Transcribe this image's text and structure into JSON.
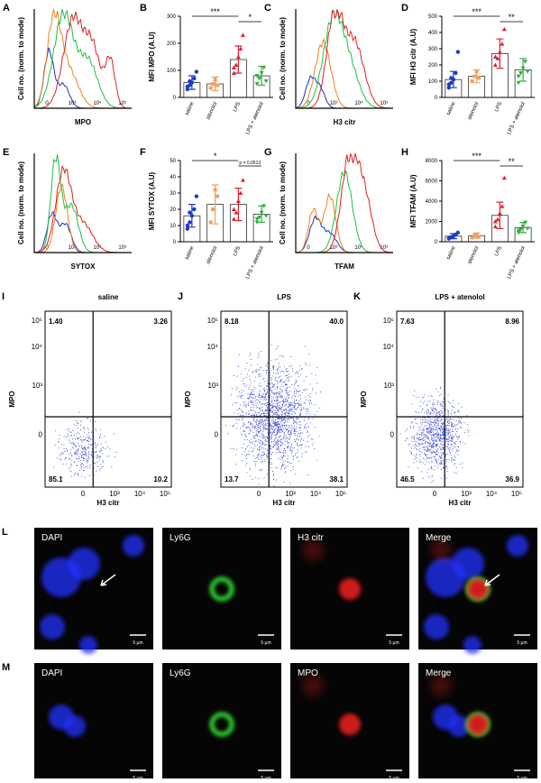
{
  "histograms": [
    {
      "label": "A",
      "xlabel": "MPO",
      "ylabel": "Cell no. (norm. to mode)",
      "xticks": [
        "0",
        "10³",
        "10⁴",
        "10⁵"
      ]
    },
    {
      "label": "C",
      "xlabel": "H3 citr",
      "ylabel": "Cell no. (norm. to mode)",
      "xticks": [
        "0",
        "10³",
        "10⁴",
        "10⁵"
      ]
    },
    {
      "label": "E",
      "xlabel": "SYTOX",
      "ylabel": "Cell no. (norm. to mode)",
      "xticks": [
        "0",
        "10³",
        "10⁴",
        "10⁵"
      ]
    },
    {
      "label": "G",
      "xlabel": "TFAM",
      "ylabel": "Cell no. (norm. to mode)",
      "xticks": [
        "0",
        "10³",
        "10⁴",
        "10⁵"
      ]
    }
  ],
  "bar_charts": [
    {
      "label": "B",
      "ylabel": "MFI MPO (A.U)",
      "categories": [
        "saline",
        "atenolol",
        "LPS",
        "LPS + atenolol"
      ],
      "colors": [
        "#1c3cc4",
        "#f0a060",
        "#e02030",
        "#30b040"
      ],
      "ylim": [
        0,
        300
      ],
      "yticks": [
        0,
        100,
        200,
        300
      ],
      "values": [
        55,
        50,
        140,
        80
      ],
      "errors": [
        25,
        25,
        50,
        35
      ],
      "points": [
        [
          30,
          45,
          55,
          70,
          95,
          40,
          60
        ],
        [
          35,
          50,
          65,
          45
        ],
        [
          90,
          120,
          150,
          180,
          230,
          110
        ],
        [
          50,
          70,
          90,
          110,
          60,
          80
        ]
      ],
      "annotations": [
        {
          "text": "***",
          "between": [
            "saline",
            "LPS"
          ]
        },
        {
          "text": "*",
          "between": [
            "LPS",
            "LPS + atenolol"
          ]
        }
      ]
    },
    {
      "label": "D",
      "ylabel": "MFI H3 citr (A.U)",
      "categories": [
        "saline",
        "atenolol",
        "LPS",
        "LPS + atenolol"
      ],
      "colors": [
        "#1c3cc4",
        "#f0a060",
        "#e02030",
        "#30b040"
      ],
      "ylim": [
        0,
        500
      ],
      "yticks": [
        0,
        100,
        200,
        300,
        400,
        500
      ],
      "values": [
        110,
        130,
        270,
        170
      ],
      "errors": [
        50,
        40,
        90,
        70
      ],
      "points": [
        [
          60,
          90,
          110,
          150,
          280,
          80,
          120
        ],
        [
          100,
          130,
          160,
          120
        ],
        [
          200,
          240,
          280,
          330,
          420,
          250
        ],
        [
          90,
          150,
          180,
          220,
          160,
          130
        ]
      ],
      "annotations": [
        {
          "text": "***",
          "between": [
            "saline",
            "LPS"
          ]
        },
        {
          "text": "**",
          "between": [
            "LPS",
            "LPS + atenolol"
          ]
        }
      ]
    },
    {
      "label": "F",
      "ylabel": "MFI SYTOX (A.U)",
      "categories": [
        "saline",
        "atenolol",
        "LPS",
        "LPS + atenolol"
      ],
      "colors": [
        "#1c3cc4",
        "#f0a060",
        "#e02030",
        "#30b040"
      ],
      "ylim": [
        0,
        50
      ],
      "yticks": [
        0,
        10,
        20,
        30,
        40,
        50
      ],
      "values": [
        16,
        23,
        23,
        17
      ],
      "errors": [
        7,
        12,
        10,
        5
      ],
      "points": [
        [
          8,
          12,
          16,
          20,
          28,
          10,
          18
        ],
        [
          12,
          20,
          32,
          28
        ],
        [
          14,
          18,
          25,
          30,
          38,
          20
        ],
        [
          12,
          15,
          18,
          22,
          16,
          14
        ]
      ],
      "annotations": [
        {
          "text": "*",
          "between": [
            "saline",
            "LPS"
          ]
        },
        {
          "text": "p = 0.0513",
          "between": [
            "LPS",
            "LPS + atenolol"
          ]
        }
      ]
    },
    {
      "label": "H",
      "ylabel": "MFI TFAM (A.U)",
      "categories": [
        "saline",
        "atenolol",
        "LPS",
        "LPS + atenolol"
      ],
      "colors": [
        "#1c3cc4",
        "#f0a060",
        "#e02030",
        "#30b040"
      ],
      "ylim": [
        0,
        8000
      ],
      "yticks": [
        0,
        2000,
        4000,
        6000,
        8000
      ],
      "values": [
        550,
        600,
        2600,
        1400
      ],
      "errors": [
        250,
        250,
        1300,
        500
      ],
      "points": [
        [
          300,
          450,
          550,
          700,
          900,
          400
        ],
        [
          400,
          600,
          750,
          500
        ],
        [
          1500,
          2200,
          2800,
          3500,
          6300,
          2000
        ],
        [
          900,
          1200,
          1500,
          1900,
          1300,
          1100
        ]
      ],
      "annotations": [
        {
          "text": "***",
          "between": [
            "saline",
            "LPS"
          ]
        },
        {
          "text": "**",
          "between": [
            "LPS",
            "LPS + atenolol"
          ]
        }
      ]
    }
  ],
  "flow_plots": [
    {
      "label": "I",
      "title": "saline",
      "xlabel": "H3 citr",
      "ylabel": "MPO",
      "xticks": [
        "0",
        "10³",
        "10⁴",
        "10⁵"
      ],
      "yticks": [
        "10⁵",
        "10⁴",
        "10³",
        "0"
      ],
      "quadrants": [
        "1.40",
        "3.26",
        "85.1",
        "10.2"
      ]
    },
    {
      "label": "J",
      "title": "LPS",
      "xlabel": "H3 citr",
      "ylabel": "MPO",
      "xticks": [
        "0",
        "10³",
        "10⁴",
        "10⁵"
      ],
      "yticks": [
        "10⁵",
        "10⁴",
        "10³",
        "0"
      ],
      "quadrants": [
        "8.18",
        "40.0",
        "13.7",
        "38.1"
      ]
    },
    {
      "label": "K",
      "title": "LPS + atenolol",
      "xlabel": "H3 citr",
      "ylabel": "MPO",
      "xticks": [
        "0",
        "10³",
        "10⁴",
        "10⁵"
      ],
      "yticks": [
        "10⁵",
        "10⁴",
        "10³",
        "0"
      ],
      "quadrants": [
        "7.63",
        "8.96",
        "46.5",
        "36.9"
      ]
    }
  ],
  "micrographs": [
    {
      "label": "L",
      "channels": [
        "DAPI",
        "Ly6G",
        "H3 citr",
        "Merge"
      ],
      "scale_bar": "5 μm"
    },
    {
      "label": "M",
      "channels": [
        "DAPI",
        "Ly6G",
        "MPO",
        "Merge"
      ],
      "scale_bar": "5 μm"
    }
  ]
}
